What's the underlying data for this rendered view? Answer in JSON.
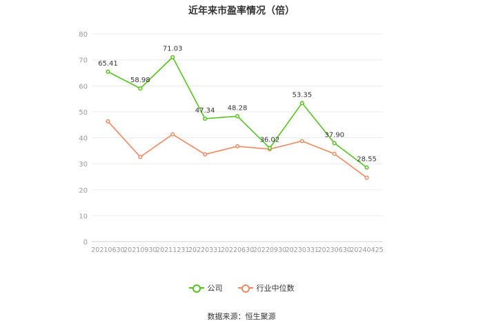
{
  "title": "近年来市盈率情况（倍）",
  "source": "数据来源：恒生聚源",
  "legend": {
    "items": [
      {
        "label": "公司",
        "color": "#52c41a"
      },
      {
        "label": "行业中位数",
        "color": "#f5875e"
      }
    ]
  },
  "chart_data": {
    "type": "line",
    "title": "近年来市盈率情况（倍）",
    "categories": [
      "20210630",
      "20210930",
      "20211231",
      "20220331",
      "20220630",
      "20220930",
      "20230331",
      "20230630",
      "20240425"
    ],
    "ylim": [
      0,
      80
    ],
    "yticks": [
      0,
      10,
      20,
      30,
      40,
      50,
      60,
      70,
      80
    ],
    "grid": true,
    "legend_position": "bottom",
    "series": [
      {
        "name": "公司",
        "color": "#52c41a",
        "values": [
          65.41,
          58.98,
          71.03,
          47.34,
          48.28,
          36.02,
          53.35,
          37.9,
          28.55
        ],
        "labels": [
          "65.41",
          "58.98",
          "71.03",
          "47.34",
          "48.28",
          "36.02",
          "53.35",
          "37.90",
          "28.55"
        ]
      },
      {
        "name": "行业中位数",
        "color": "#f5875e",
        "values": [
          46.3,
          32.6,
          41.3,
          33.6,
          36.7,
          35.6,
          38.7,
          33.8,
          24.6
        ]
      }
    ]
  }
}
